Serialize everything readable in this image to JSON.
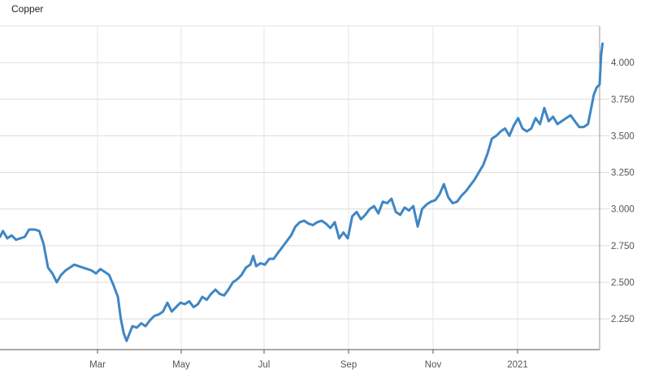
{
  "chart_data": {
    "type": "line",
    "title": "Copper",
    "xlabel": "",
    "ylabel": "",
    "x_tick_labels": [
      "Mar",
      "May",
      "Jul",
      "Sep",
      "Nov",
      "2021"
    ],
    "y_tick_labels": [
      "2.250",
      "2.500",
      "2.750",
      "3.000",
      "3.250",
      "3.500",
      "3.750",
      "4.000"
    ],
    "y_ticks": [
      2.25,
      2.5,
      2.75,
      3.0,
      3.25,
      3.5,
      3.75,
      4.0
    ],
    "ylim": [
      2.04,
      4.25
    ],
    "xlim": [
      "2020-01-10",
      "2021-02-25"
    ],
    "grid": true,
    "series_color": "#3f86c4",
    "series": [
      {
        "points": [
          [
            "2020-01-10",
            2.81
          ],
          [
            "2020-01-12",
            2.85
          ],
          [
            "2020-01-15",
            2.8
          ],
          [
            "2020-01-18",
            2.82
          ],
          [
            "2020-01-21",
            2.79
          ],
          [
            "2020-01-24",
            2.8
          ],
          [
            "2020-01-27",
            2.81
          ],
          [
            "2020-01-30",
            2.86
          ],
          [
            "2020-02-03",
            2.86
          ],
          [
            "2020-02-06",
            2.85
          ],
          [
            "2020-02-09",
            2.76
          ],
          [
            "2020-02-12",
            2.6
          ],
          [
            "2020-02-15",
            2.56
          ],
          [
            "2020-02-18",
            2.5
          ],
          [
            "2020-02-21",
            2.55
          ],
          [
            "2020-02-24",
            2.58
          ],
          [
            "2020-02-27",
            2.6
          ],
          [
            "2020-03-01",
            2.62
          ],
          [
            "2020-03-04",
            2.61
          ],
          [
            "2020-03-07",
            2.6
          ],
          [
            "2020-03-10",
            2.59
          ],
          [
            "2020-03-13",
            2.58
          ],
          [
            "2020-03-16",
            2.56
          ],
          [
            "2020-03-19",
            2.59
          ],
          [
            "2020-03-22",
            2.57
          ],
          [
            "2020-03-25",
            2.55
          ],
          [
            "2020-03-28",
            2.48
          ],
          [
            "2020-03-31",
            2.4
          ],
          [
            "2020-04-02",
            2.25
          ],
          [
            "2020-04-04",
            2.15
          ],
          [
            "2020-04-06",
            2.1
          ],
          [
            "2020-04-08",
            2.15
          ],
          [
            "2020-04-10",
            2.2
          ],
          [
            "2020-04-13",
            2.19
          ],
          [
            "2020-04-16",
            2.22
          ],
          [
            "2020-04-19",
            2.2
          ],
          [
            "2020-04-22",
            2.24
          ],
          [
            "2020-04-25",
            2.27
          ],
          [
            "2020-04-28",
            2.28
          ],
          [
            "2020-05-01",
            2.3
          ],
          [
            "2020-05-04",
            2.36
          ],
          [
            "2020-05-07",
            2.3
          ],
          [
            "2020-05-10",
            2.33
          ],
          [
            "2020-05-13",
            2.36
          ],
          [
            "2020-05-16",
            2.35
          ],
          [
            "2020-05-19",
            2.37
          ],
          [
            "2020-05-22",
            2.33
          ],
          [
            "2020-05-25",
            2.35
          ],
          [
            "2020-05-28",
            2.4
          ],
          [
            "2020-05-31",
            2.38
          ],
          [
            "2020-06-03",
            2.42
          ],
          [
            "2020-06-06",
            2.45
          ],
          [
            "2020-06-09",
            2.42
          ],
          [
            "2020-06-12",
            2.41
          ],
          [
            "2020-06-15",
            2.45
          ],
          [
            "2020-06-18",
            2.5
          ],
          [
            "2020-06-21",
            2.52
          ],
          [
            "2020-06-24",
            2.55
          ],
          [
            "2020-06-27",
            2.6
          ],
          [
            "2020-06-30",
            2.62
          ],
          [
            "2020-07-02",
            2.68
          ],
          [
            "2020-07-04",
            2.61
          ],
          [
            "2020-07-07",
            2.63
          ],
          [
            "2020-07-10",
            2.62
          ],
          [
            "2020-07-13",
            2.66
          ],
          [
            "2020-07-16",
            2.66
          ],
          [
            "2020-07-19",
            2.7
          ],
          [
            "2020-07-22",
            2.74
          ],
          [
            "2020-07-25",
            2.78
          ],
          [
            "2020-07-28",
            2.82
          ],
          [
            "2020-07-31",
            2.88
          ],
          [
            "2020-08-03",
            2.91
          ],
          [
            "2020-08-06",
            2.92
          ],
          [
            "2020-08-09",
            2.9
          ],
          [
            "2020-08-12",
            2.89
          ],
          [
            "2020-08-15",
            2.91
          ],
          [
            "2020-08-18",
            2.92
          ],
          [
            "2020-08-21",
            2.9
          ],
          [
            "2020-08-24",
            2.87
          ],
          [
            "2020-08-27",
            2.91
          ],
          [
            "2020-08-30",
            2.8
          ],
          [
            "2020-09-02",
            2.84
          ],
          [
            "2020-09-05",
            2.8
          ],
          [
            "2020-09-08",
            2.95
          ],
          [
            "2020-09-11",
            2.98
          ],
          [
            "2020-09-14",
            2.93
          ],
          [
            "2020-09-17",
            2.96
          ],
          [
            "2020-09-20",
            3.0
          ],
          [
            "2020-09-23",
            3.02
          ],
          [
            "2020-09-26",
            2.97
          ],
          [
            "2020-09-29",
            3.05
          ],
          [
            "2020-10-02",
            3.04
          ],
          [
            "2020-10-05",
            3.07
          ],
          [
            "2020-10-08",
            2.98
          ],
          [
            "2020-10-11",
            2.96
          ],
          [
            "2020-10-14",
            3.01
          ],
          [
            "2020-10-17",
            2.99
          ],
          [
            "2020-10-20",
            3.02
          ],
          [
            "2020-10-23",
            2.88
          ],
          [
            "2020-10-26",
            3.0
          ],
          [
            "2020-10-29",
            3.03
          ],
          [
            "2020-11-01",
            3.05
          ],
          [
            "2020-11-04",
            3.06
          ],
          [
            "2020-11-07",
            3.1
          ],
          [
            "2020-11-10",
            3.17
          ],
          [
            "2020-11-13",
            3.08
          ],
          [
            "2020-11-16",
            3.04
          ],
          [
            "2020-11-19",
            3.05
          ],
          [
            "2020-11-22",
            3.09
          ],
          [
            "2020-11-25",
            3.12
          ],
          [
            "2020-11-28",
            3.16
          ],
          [
            "2020-12-01",
            3.2
          ],
          [
            "2020-12-04",
            3.25
          ],
          [
            "2020-12-07",
            3.3
          ],
          [
            "2020-12-10",
            3.38
          ],
          [
            "2020-12-13",
            3.48
          ],
          [
            "2020-12-16",
            3.5
          ],
          [
            "2020-12-19",
            3.53
          ],
          [
            "2020-12-22",
            3.55
          ],
          [
            "2020-12-25",
            3.5
          ],
          [
            "2020-12-28",
            3.57
          ],
          [
            "2020-12-31",
            3.62
          ],
          [
            "2021-01-03",
            3.55
          ],
          [
            "2021-01-06",
            3.53
          ],
          [
            "2021-01-09",
            3.55
          ],
          [
            "2021-01-12",
            3.62
          ],
          [
            "2021-01-15",
            3.58
          ],
          [
            "2021-01-18",
            3.69
          ],
          [
            "2021-01-21",
            3.6
          ],
          [
            "2021-01-24",
            3.63
          ],
          [
            "2021-01-27",
            3.58
          ],
          [
            "2021-01-30",
            3.6
          ],
          [
            "2021-02-02",
            3.62
          ],
          [
            "2021-02-05",
            3.64
          ],
          [
            "2021-02-08",
            3.6
          ],
          [
            "2021-02-11",
            3.56
          ],
          [
            "2021-02-14",
            3.56
          ],
          [
            "2021-02-17",
            3.58
          ],
          [
            "2021-02-19",
            3.68
          ],
          [
            "2021-02-21",
            3.78
          ],
          [
            "2021-02-23",
            3.83
          ],
          [
            "2021-02-25",
            3.85
          ],
          [
            "2021-02-26",
            4.05
          ],
          [
            "2021-02-27",
            4.13
          ]
        ]
      }
    ]
  }
}
